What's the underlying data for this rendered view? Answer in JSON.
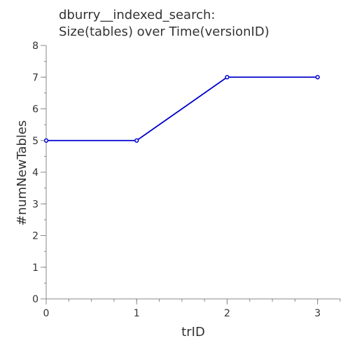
{
  "chart_data": {
    "type": "line",
    "title_lines": [
      "dburry__indexed_search:",
      "Size(tables) over Time(versionID)"
    ],
    "xlabel": "trID",
    "ylabel": "#numNewTables",
    "x": [
      0,
      1,
      2,
      3
    ],
    "series": [
      {
        "values": [
          5,
          5,
          7,
          7
        ]
      }
    ],
    "xlim": [
      0,
      3.25
    ],
    "ylim": [
      0,
      8
    ],
    "x_ticks": [
      0,
      1,
      2,
      3
    ],
    "y_ticks": [
      0,
      1,
      2,
      3,
      4,
      5,
      6,
      7,
      8
    ],
    "x_minor_step": 0.25,
    "y_minor_step": 0.5,
    "grid": false,
    "line_color": "#0000cc",
    "axis_color": "#888888",
    "text_color": "#333333"
  }
}
